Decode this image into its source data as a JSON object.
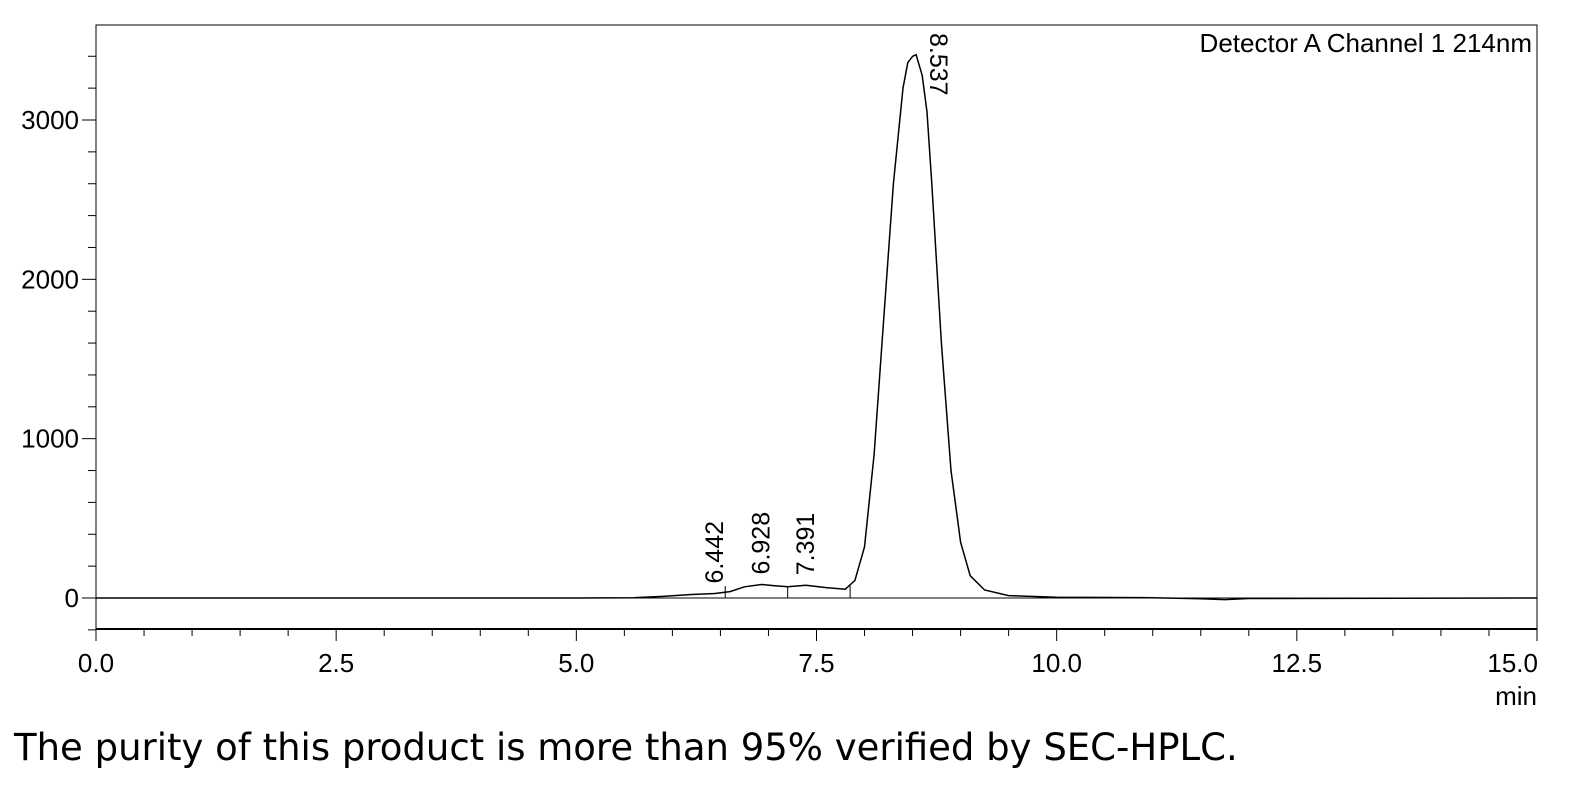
{
  "chart_data": {
    "type": "line",
    "annotation": "Detector A Channel 1 214nm",
    "x_unit_label": "min",
    "xlim": [
      0,
      15
    ],
    "ylim": [
      -200,
      3600
    ],
    "x_ticks": [
      0.0,
      2.5,
      5.0,
      7.5,
      10.0,
      12.5,
      15.0
    ],
    "x_tick_labels": [
      "0.0",
      "2.5",
      "5.0",
      "7.5",
      "10.0",
      "12.5",
      "15.0"
    ],
    "x_minor_step": 0.5,
    "y_ticks": [
      0,
      1000,
      2000,
      3000
    ],
    "y_tick_labels": [
      "0",
      "1000",
      "2000",
      "3000"
    ],
    "y_minor_step": 200,
    "grid": false,
    "series": [
      {
        "x": [
          0,
          5.0,
          5.6,
          5.9,
          6.2,
          6.442,
          6.6,
          6.75,
          6.928,
          7.05,
          7.2,
          7.391,
          7.6,
          7.8,
          7.9,
          8.0,
          8.1,
          8.2,
          8.3,
          8.4,
          8.45,
          8.5,
          8.537,
          8.6,
          8.65,
          8.7,
          8.8,
          8.9,
          9.0,
          9.1,
          9.25,
          9.5,
          10.0,
          11.0,
          11.5,
          11.75,
          12.0,
          15.0
        ],
        "y": [
          0,
          0,
          2,
          10,
          22,
          28,
          40,
          70,
          85,
          78,
          70,
          80,
          65,
          55,
          110,
          320,
          900,
          1750,
          2600,
          3200,
          3360,
          3400,
          3410,
          3280,
          3050,
          2600,
          1600,
          800,
          350,
          140,
          50,
          15,
          5,
          2,
          -5,
          -10,
          -3,
          0
        ]
      }
    ],
    "peaks": [
      {
        "label": "6.442",
        "rt": 6.442,
        "y": 28
      },
      {
        "label": "6.928",
        "rt": 6.928,
        "y": 85
      },
      {
        "label": "7.391",
        "rt": 7.391,
        "y": 80
      },
      {
        "label": "8.537",
        "rt": 8.537,
        "y": 3410
      }
    ],
    "integration_marks": [
      6.55,
      7.2,
      7.85
    ]
  },
  "caption": "The purity of this product is more than 95% verified by SEC-HPLC.",
  "colors": {
    "line": "#000000",
    "background": "#ffffff"
  }
}
